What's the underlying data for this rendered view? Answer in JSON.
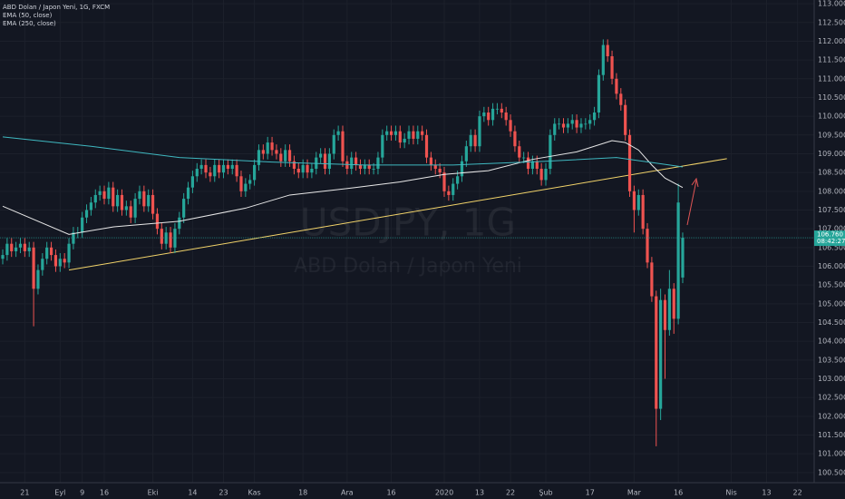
{
  "chart_data": {
    "type": "candlestick",
    "title": "ABD Dolan / Japon Yeni, 1G, FXCM",
    "watermark": "USDJPY, 1G",
    "watermark_subtitle": "ABD Dolan / Japon Yeni",
    "price_label": "106.760",
    "countdown": "08:42:27",
    "up_color": "#26a69a",
    "down_color": "#ef5350",
    "grid": true,
    "ylim": [
      100.23,
      113.1
    ],
    "yticks": [
      {
        "value": 100.5,
        "label": "100.500"
      },
      {
        "value": 101,
        "label": "101.000"
      },
      {
        "value": 101.5,
        "label": "101.500"
      },
      {
        "value": 102,
        "label": "102.000"
      },
      {
        "value": 102.5,
        "label": "102.500"
      },
      {
        "value": 103,
        "label": "103.000"
      },
      {
        "value": 103.5,
        "label": "103.500"
      },
      {
        "value": 104,
        "label": "104.000"
      },
      {
        "value": 104.5,
        "label": "104.500"
      },
      {
        "value": 105,
        "label": "105.000"
      },
      {
        "value": 105.5,
        "label": "105.500"
      },
      {
        "value": 106,
        "label": "106.000"
      },
      {
        "value": 106.5,
        "label": "106.500"
      },
      {
        "value": 107,
        "label": "107.000"
      },
      {
        "value": 107.5,
        "label": "107.500"
      },
      {
        "value": 108,
        "label": "108.000"
      },
      {
        "value": 108.5,
        "label": "108.500"
      },
      {
        "value": 109,
        "label": "109.000"
      },
      {
        "value": 109.5,
        "label": "109.500"
      },
      {
        "value": 110,
        "label": "110.000"
      },
      {
        "value": 110.5,
        "label": "110.500"
      },
      {
        "value": 111,
        "label": "111.000"
      },
      {
        "value": 111.5,
        "label": "111.500"
      },
      {
        "value": 112,
        "label": "112.000"
      },
      {
        "value": 112.5,
        "label": "112.500"
      },
      {
        "value": 113,
        "label": "113.000"
      }
    ],
    "categories": [
      null,
      null,
      null,
      null,
      null,
      "21",
      null,
      null,
      null,
      null,
      null,
      null,
      null,
      "Eyl",
      null,
      null,
      null,
      null,
      "9",
      null,
      null,
      null,
      null,
      "16",
      null,
      null,
      null,
      null,
      null,
      null,
      null,
      null,
      null,
      null,
      "Eki",
      null,
      null,
      null,
      null,
      null,
      null,
      null,
      null,
      "14",
      null,
      null,
      null,
      null,
      null,
      null,
      "23",
      null,
      null,
      null,
      null,
      null,
      null,
      "Kas",
      null,
      null,
      null,
      null,
      null,
      null,
      null,
      null,
      null,
      null,
      "18",
      null,
      null,
      null,
      null,
      null,
      null,
      null,
      null,
      null,
      "Ara",
      null,
      null,
      null,
      null,
      null,
      null,
      null,
      null,
      null,
      "16",
      null,
      null,
      null,
      null,
      null,
      null,
      null,
      null,
      null,
      null,
      null,
      "2020",
      null,
      null,
      null,
      null,
      null,
      null,
      null,
      "13",
      null,
      null,
      null,
      null,
      null,
      null,
      "22",
      null,
      null,
      null,
      null,
      null,
      null,
      null,
      "Şub",
      null,
      null,
      null,
      null,
      null,
      null,
      null,
      null,
      null,
      "17",
      null,
      null,
      null,
      null,
      null,
      null,
      null,
      null,
      null,
      "Mar",
      null,
      null,
      null,
      null,
      null,
      null,
      null,
      null,
      null,
      "16",
      null,
      null,
      null,
      null,
      null,
      null,
      null,
      null,
      null,
      null,
      null,
      "Nis",
      null,
      null,
      null,
      null,
      null,
      null,
      null,
      "13",
      null,
      null,
      null,
      null,
      null,
      null,
      "22"
    ],
    "open": [
      106.2,
      106.3,
      106.6,
      106.4,
      106.5,
      106.6,
      106.4,
      106.5,
      105.4,
      105.9,
      106.2,
      106.5,
      106.3,
      106.0,
      106.2,
      106.1,
      106.6,
      106.9,
      106.9,
      107.3,
      107.5,
      107.7,
      107.9,
      108.0,
      107.8,
      108.1,
      107.6,
      107.9,
      107.5,
      107.6,
      107.3,
      107.8,
      108.0,
      107.6,
      107.9,
      107.4,
      107.0,
      106.6,
      106.9,
      106.5,
      107.0,
      107.3,
      107.8,
      108.1,
      108.4,
      108.6,
      108.7,
      108.5,
      108.4,
      108.7,
      108.5,
      108.7,
      108.6,
      108.7,
      108.4,
      108.0,
      108.2,
      108.3,
      108.7,
      109.1,
      109.0,
      109.3,
      109.1,
      109.0,
      108.8,
      109.1,
      108.8,
      108.6,
      108.5,
      108.7,
      108.5,
      108.6,
      108.9,
      109.0,
      108.6,
      109.0,
      109.5,
      109.6,
      108.8,
      108.6,
      108.9,
      108.7,
      108.6,
      108.7,
      108.6,
      108.6,
      108.9,
      109.5,
      109.6,
      109.5,
      109.6,
      109.3,
      109.4,
      109.6,
      109.4,
      109.6,
      109.5,
      108.9,
      108.7,
      108.6,
      108.5,
      108.0,
      107.9,
      108.2,
      108.4,
      108.8,
      109.2,
      109.5,
      109.2,
      110.0,
      110.1,
      109.9,
      110.2,
      110.2,
      110.1,
      109.9,
      109.6,
      109.2,
      108.9,
      108.9,
      108.6,
      108.8,
      108.6,
      108.3,
      108.6,
      109.5,
      109.8,
      109.8,
      109.7,
      109.8,
      109.9,
      109.7,
      109.8,
      109.8,
      109.9,
      110.1,
      111.1,
      111.9,
      111.6,
      111.0,
      110.6,
      110.3,
      109.5,
      108.0,
      107.5,
      107.9,
      107.0,
      106.1,
      105.2,
      102.2,
      105.1,
      104.3,
      105.4,
      104.6,
      105.7,
      null,
      null,
      null,
      null,
      null,
      null,
      null,
      null,
      null,
      null,
      null,
      null,
      null,
      null,
      null,
      null,
      null,
      null,
      null,
      null,
      null,
      null,
      null,
      null,
      null,
      null
    ],
    "high": [
      106.45,
      106.75,
      106.75,
      106.65,
      106.75,
      106.75,
      106.65,
      106.65,
      106.05,
      106.35,
      106.65,
      106.65,
      106.45,
      106.35,
      106.35,
      106.75,
      107.05,
      107.05,
      107.45,
      107.65,
      107.85,
      108.05,
      108.15,
      108.15,
      108.25,
      108.25,
      108.05,
      108.05,
      107.75,
      107.75,
      107.95,
      108.15,
      108.15,
      108.05,
      108.05,
      107.55,
      107.15,
      107.05,
      107.05,
      107.15,
      107.45,
      107.95,
      108.25,
      108.55,
      108.75,
      108.85,
      108.85,
      108.65,
      108.85,
      108.85,
      108.85,
      108.85,
      108.85,
      108.85,
      108.55,
      108.35,
      108.45,
      108.85,
      109.25,
      109.25,
      109.45,
      109.45,
      109.25,
      109.15,
      109.25,
      109.25,
      108.95,
      108.75,
      108.85,
      108.85,
      108.75,
      109.05,
      109.15,
      109.15,
      109.15,
      109.65,
      109.75,
      109.75,
      108.95,
      109.05,
      109.05,
      108.85,
      108.85,
      108.85,
      108.75,
      109.05,
      109.65,
      109.75,
      109.75,
      109.75,
      109.75,
      109.55,
      109.75,
      109.75,
      109.75,
      109.75,
      109.65,
      109.05,
      108.85,
      108.75,
      108.65,
      108.15,
      108.35,
      108.55,
      108.95,
      109.35,
      109.65,
      109.65,
      110.15,
      110.25,
      110.25,
      110.35,
      110.35,
      110.35,
      110.25,
      110.05,
      109.75,
      109.35,
      109.05,
      109.05,
      108.95,
      108.95,
      108.75,
      108.75,
      109.65,
      109.95,
      109.95,
      109.95,
      109.95,
      110.05,
      110.05,
      109.95,
      109.95,
      110.05,
      110.25,
      111.25,
      112.05,
      112.05,
      111.75,
      111.15,
      110.75,
      110.45,
      109.65,
      108.15,
      108.05,
      108.05,
      107.15,
      106.25,
      105.35,
      105.4,
      105.25,
      105.9,
      105.55,
      108.2,
      106.9,
      null,
      null,
      null,
      null,
      null,
      null,
      null,
      null,
      null,
      null,
      null,
      null,
      null,
      null,
      null,
      null,
      null,
      null,
      null,
      null,
      null,
      null,
      null,
      null,
      null,
      null
    ],
    "low": [
      106.05,
      106.15,
      106.25,
      106.25,
      106.35,
      106.25,
      106.25,
      104.4,
      105.25,
      105.75,
      106.05,
      106.15,
      105.85,
      105.85,
      105.95,
      105.95,
      106.45,
      106.75,
      106.75,
      107.15,
      107.35,
      107.55,
      107.75,
      107.65,
      107.65,
      107.45,
      107.45,
      107.35,
      107.35,
      107.15,
      107.15,
      107.65,
      107.45,
      107.45,
      107.25,
      106.85,
      106.45,
      106.45,
      106.35,
      106.35,
      106.85,
      107.15,
      107.65,
      107.95,
      108.25,
      108.45,
      108.35,
      108.25,
      108.25,
      108.35,
      108.35,
      108.45,
      108.45,
      108.25,
      107.85,
      107.85,
      108.05,
      108.15,
      108.55,
      108.85,
      108.85,
      108.95,
      108.85,
      108.65,
      108.65,
      108.65,
      108.45,
      108.35,
      108.35,
      108.35,
      108.35,
      108.45,
      108.75,
      108.45,
      108.45,
      108.85,
      109.35,
      108.65,
      108.45,
      108.45,
      108.55,
      108.45,
      108.45,
      108.45,
      108.45,
      108.45,
      108.75,
      109.35,
      109.35,
      109.35,
      109.15,
      109.15,
      109.25,
      109.25,
      109.25,
      109.35,
      108.75,
      108.55,
      108.45,
      108.35,
      107.85,
      107.75,
      107.75,
      108.05,
      108.25,
      108.65,
      109.05,
      109.05,
      109.05,
      109.85,
      109.75,
      109.75,
      110.05,
      109.95,
      109.75,
      109.45,
      109.05,
      108.75,
      108.75,
      108.45,
      108.45,
      108.45,
      108.15,
      108.15,
      108.45,
      109.35,
      109.65,
      109.55,
      109.55,
      109.65,
      109.55,
      109.55,
      109.65,
      109.65,
      109.75,
      109.95,
      110.95,
      111.45,
      110.85,
      110.45,
      110.15,
      109.35,
      107.85,
      106.9,
      107.35,
      106.85,
      105.95,
      105.05,
      101.2,
      101.9,
      103.0,
      104.15,
      104.2,
      104.45,
      105.55,
      null,
      null,
      null,
      null,
      null,
      null,
      null,
      null,
      null,
      null,
      null,
      null,
      null,
      null,
      null,
      null,
      null,
      null,
      null,
      null,
      null,
      null,
      null,
      null,
      null,
      null
    ],
    "close": [
      106.3,
      106.6,
      106.4,
      106.5,
      106.6,
      106.4,
      106.5,
      105.4,
      105.9,
      106.2,
      106.5,
      106.3,
      106.0,
      106.2,
      106.1,
      106.6,
      106.9,
      106.9,
      107.3,
      107.5,
      107.7,
      107.9,
      108.0,
      107.8,
      108.1,
      107.6,
      107.9,
      107.5,
      107.6,
      107.3,
      107.8,
      108.0,
      107.6,
      107.9,
      107.4,
      107.0,
      106.6,
      106.9,
      106.5,
      107.0,
      107.3,
      107.8,
      108.1,
      108.4,
      108.6,
      108.7,
      108.5,
      108.4,
      108.7,
      108.5,
      108.7,
      108.6,
      108.7,
      108.4,
      108.0,
      108.2,
      108.3,
      108.7,
      109.1,
      109.0,
      109.3,
      109.1,
      109.0,
      108.8,
      109.1,
      108.8,
      108.6,
      108.5,
      108.7,
      108.5,
      108.6,
      108.9,
      109.0,
      108.6,
      109.0,
      109.5,
      109.6,
      108.8,
      108.6,
      108.9,
      108.7,
      108.6,
      108.7,
      108.6,
      108.6,
      108.9,
      109.5,
      109.6,
      109.5,
      109.6,
      109.3,
      109.4,
      109.6,
      109.4,
      109.6,
      109.5,
      108.9,
      108.7,
      108.6,
      108.5,
      108.0,
      107.9,
      108.2,
      108.4,
      108.8,
      109.2,
      109.5,
      109.2,
      110.0,
      110.1,
      109.9,
      110.2,
      110.2,
      110.1,
      109.9,
      109.6,
      109.2,
      108.9,
      108.9,
      108.6,
      108.8,
      108.6,
      108.3,
      108.6,
      109.5,
      109.8,
      109.8,
      109.7,
      109.8,
      109.9,
      109.7,
      109.8,
      109.8,
      109.9,
      110.1,
      111.1,
      111.9,
      111.6,
      111.0,
      110.6,
      110.3,
      109.5,
      108.0,
      107.5,
      107.9,
      107.0,
      106.1,
      105.2,
      102.2,
      105.1,
      104.3,
      105.4,
      104.6,
      107.7,
      106.76,
      null,
      null,
      null,
      null,
      null,
      null,
      null,
      null,
      null,
      null,
      null,
      null,
      null,
      null,
      null,
      null,
      null,
      null,
      null,
      null,
      null,
      null,
      null,
      null,
      null,
      null
    ],
    "series": [
      {
        "name": "EMA (50, close)",
        "color": "#e8e8e8",
        "x": [
          0,
          15,
          25,
          40,
          55,
          65,
          80,
          90,
          100,
          110,
          120,
          130,
          138,
          141,
          144,
          147,
          150,
          154
        ],
        "values": [
          107.6,
          106.85,
          107.05,
          107.2,
          107.55,
          107.9,
          108.1,
          108.25,
          108.45,
          108.55,
          108.85,
          109.05,
          109.35,
          109.3,
          109.1,
          108.7,
          108.35,
          108.1
        ]
      },
      {
        "name": "EMA (250, close)",
        "color": "#3fb8c0",
        "x": [
          0,
          20,
          40,
          61,
          82,
          102,
          123,
          139,
          151,
          154
        ],
        "values": [
          109.45,
          109.2,
          108.9,
          108.78,
          108.7,
          108.7,
          108.8,
          108.9,
          108.7,
          108.65
        ]
      }
    ],
    "trendline": {
      "color": "#f3d46a",
      "x": [
        15,
        164
      ],
      "values": [
        105.9,
        108.87
      ]
    }
  }
}
